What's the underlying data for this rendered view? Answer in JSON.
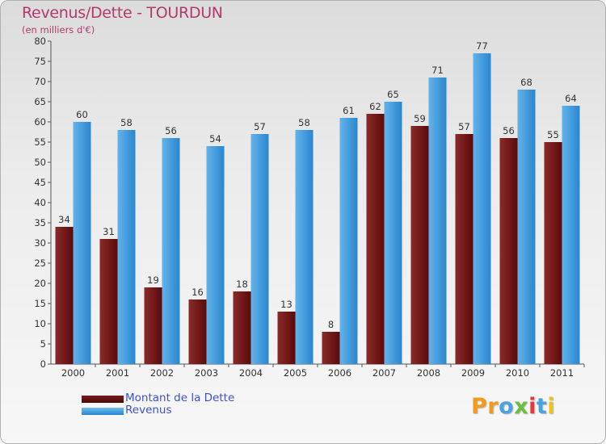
{
  "title": "Revenus/Dette - TOURDUN",
  "subtitle": "(en milliers d'€)",
  "legend": {
    "debt_label": "Montant de la Dette",
    "revenue_label": "Revenus"
  },
  "logo": {
    "text": "Proxiti"
  },
  "colors": {
    "title": "#b23a6b",
    "debt_top": "#8a2a2a",
    "debt_bottom": "#5c0a0a",
    "revenue_top": "#63b3ea",
    "revenue_bottom": "#2a86cf",
    "legend_text": "#3c52c8"
  },
  "chart_data": {
    "type": "bar",
    "title": "Revenus/Dette - TOURDUN",
    "subtitle": "(en milliers d'€)",
    "xlabel": "",
    "ylabel": "",
    "ylim": [
      0,
      80
    ],
    "ytick_step": 5,
    "grid": false,
    "legend_position": "bottom-left",
    "categories": [
      "2000",
      "2001",
      "2002",
      "2003",
      "2004",
      "2005",
      "2006",
      "2007",
      "2008",
      "2009",
      "2010",
      "2011"
    ],
    "series": [
      {
        "name": "Montant de la Dette",
        "values": [
          34,
          31,
          19,
          16,
          18,
          13,
          8,
          62,
          59,
          57,
          56,
          55
        ]
      },
      {
        "name": "Revenus",
        "values": [
          60,
          58,
          56,
          54,
          57,
          58,
          61,
          65,
          71,
          77,
          68,
          64
        ]
      }
    ]
  }
}
